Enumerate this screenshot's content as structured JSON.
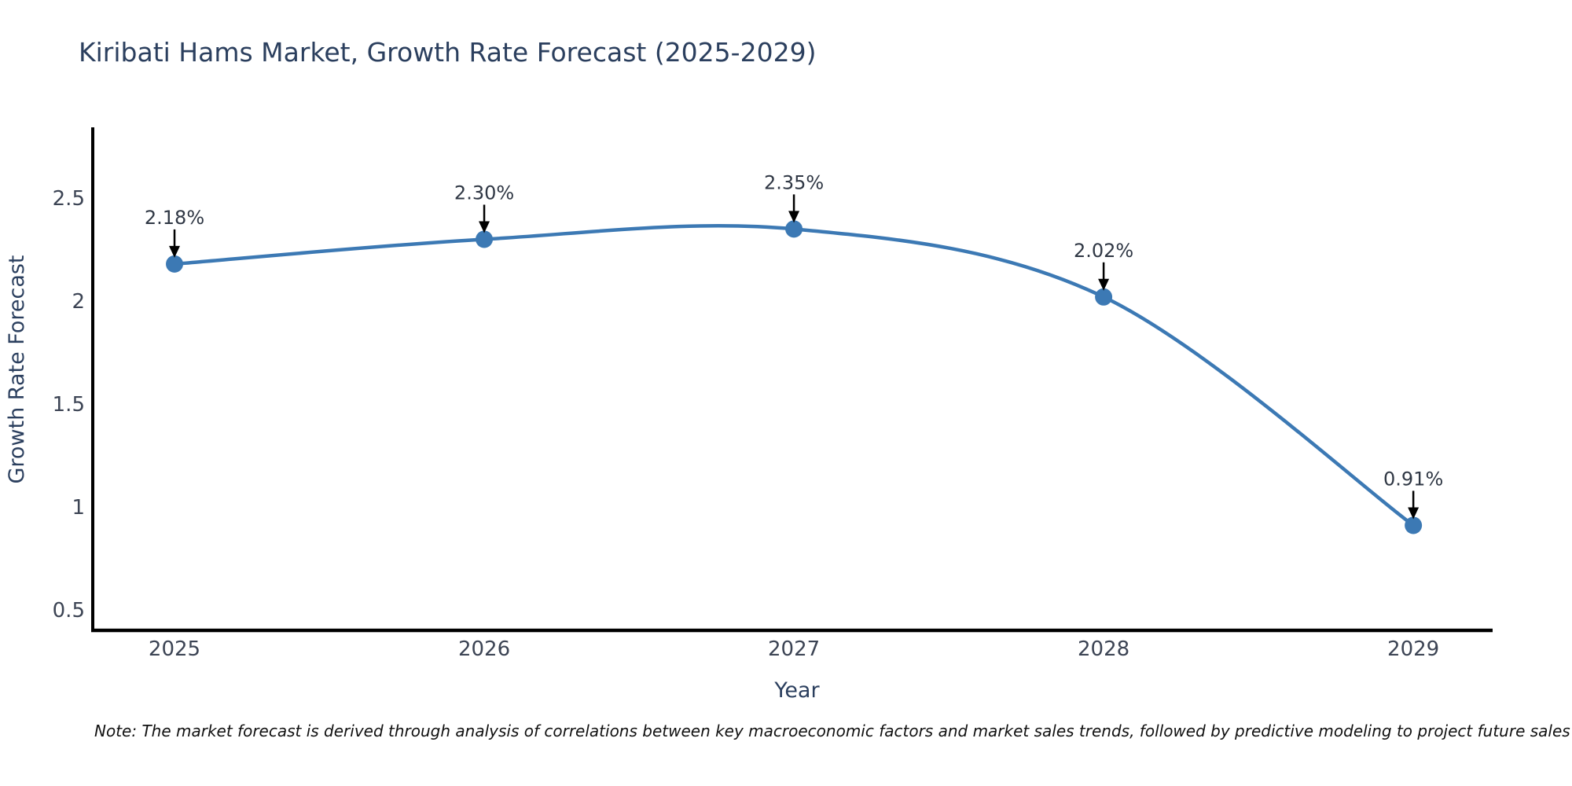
{
  "title": "Kiribati Hams Market, Growth Rate Forecast (2025-2029)",
  "note_text": "Note: The market forecast is derived through analysis of correlations between key macroeconomic factors and market sales trends, followed by predictive modeling to project future sales",
  "chart_data": {
    "type": "line",
    "title": "Kiribati Hams Market, Growth Rate Forecast (2025-2029)",
    "xlabel": "Year",
    "ylabel": "Growth Rate Forecast",
    "categories": [
      2025,
      2026,
      2027,
      2028,
      2029
    ],
    "series": [
      {
        "name": "Growth Rate Forecast",
        "values": [
          2.18,
          2.3,
          2.35,
          2.02,
          0.91
        ]
      }
    ],
    "point_labels": [
      "2.18%",
      "2.30%",
      "2.35%",
      "2.02%",
      "0.91%"
    ],
    "yticks": [
      0.5,
      1,
      1.5,
      2,
      2.5
    ],
    "ytick_labels": [
      "0.5",
      "1",
      "1.5",
      "2",
      "2.5"
    ],
    "ylim": [
      0.4,
      2.844
    ],
    "xlim": [
      2024.736,
      2029.256
    ],
    "grid": false,
    "legend": "none",
    "line_shape": "spline",
    "colors": {
      "line": "#3c79b4",
      "marker": "#3c79b4",
      "axis": "#000000",
      "title_text": "#2b3f5e",
      "axis_title_text": "#2b3f5e",
      "tick_text": "#3c4454",
      "point_label_text": "#2f3744",
      "arrow": "#000000",
      "note_text": "#111111",
      "background": "#ffffff"
    }
  }
}
